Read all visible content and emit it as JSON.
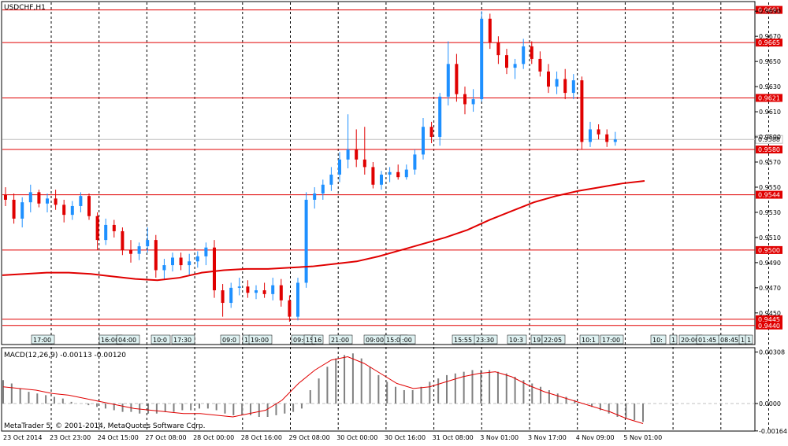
{
  "chart_data": [
    {
      "type": "candlestick",
      "title": "USDCHF,H1",
      "ylim": [
        0.9433,
        0.9697
      ],
      "yticks": [
        "0.9690",
        "0.9670",
        "0.9650",
        "0.9630",
        "0.9610",
        "0.9590",
        "0.9570",
        "0.9550",
        "0.9530",
        "0.9510",
        "0.9490",
        "0.9470",
        "0.9450"
      ],
      "levels": [
        "0.9691",
        "0.9665",
        "0.9621",
        "0.9580",
        "0.9544",
        "0.9500",
        "0.9445",
        "0.9440"
      ],
      "current_price": "0.9588",
      "ma_points": [
        0.948,
        0.9481,
        0.9482,
        0.9482,
        0.9481,
        0.9479,
        0.9477,
        0.9476,
        0.9478,
        0.9482,
        0.9484,
        0.9485,
        0.9485,
        0.9486,
        0.9487,
        0.9489,
        0.9491,
        0.9495,
        0.95,
        0.9505,
        0.951,
        0.9516,
        0.9524,
        0.9531,
        0.9538,
        0.9543,
        0.9547,
        0.955,
        0.9553,
        0.9555
      ],
      "candles": [
        {
          "o": 0.9544,
          "h": 0.955,
          "l": 0.9535,
          "c": 0.954
        },
        {
          "o": 0.954,
          "h": 0.9545,
          "l": 0.9521,
          "c": 0.9525
        },
        {
          "o": 0.9525,
          "h": 0.9542,
          "l": 0.9518,
          "c": 0.9538
        },
        {
          "o": 0.9538,
          "h": 0.9552,
          "l": 0.953,
          "c": 0.9546
        },
        {
          "o": 0.9546,
          "h": 0.9548,
          "l": 0.9534,
          "c": 0.9537
        },
        {
          "o": 0.9537,
          "h": 0.9545,
          "l": 0.953,
          "c": 0.9541
        },
        {
          "o": 0.9541,
          "h": 0.9548,
          "l": 0.9532,
          "c": 0.9536
        },
        {
          "o": 0.9536,
          "h": 0.954,
          "l": 0.9522,
          "c": 0.9528
        },
        {
          "o": 0.9528,
          "h": 0.9539,
          "l": 0.9524,
          "c": 0.9535
        },
        {
          "o": 0.9535,
          "h": 0.9546,
          "l": 0.953,
          "c": 0.9543
        },
        {
          "o": 0.9543,
          "h": 0.9545,
          "l": 0.9524,
          "c": 0.9527
        },
        {
          "o": 0.9527,
          "h": 0.953,
          "l": 0.95,
          "c": 0.9508
        },
        {
          "o": 0.9508,
          "h": 0.9525,
          "l": 0.9504,
          "c": 0.952
        },
        {
          "o": 0.952,
          "h": 0.9524,
          "l": 0.951,
          "c": 0.9515
        },
        {
          "o": 0.9515,
          "h": 0.9518,
          "l": 0.9496,
          "c": 0.95
        },
        {
          "o": 0.95,
          "h": 0.9508,
          "l": 0.949,
          "c": 0.9497
        },
        {
          "o": 0.9497,
          "h": 0.9506,
          "l": 0.9492,
          "c": 0.9503
        },
        {
          "o": 0.9503,
          "h": 0.9518,
          "l": 0.9498,
          "c": 0.9508
        },
        {
          "o": 0.9508,
          "h": 0.9512,
          "l": 0.9478,
          "c": 0.9484
        },
        {
          "o": 0.9484,
          "h": 0.9493,
          "l": 0.9477,
          "c": 0.9488
        },
        {
          "o": 0.9488,
          "h": 0.9498,
          "l": 0.9483,
          "c": 0.9494
        },
        {
          "o": 0.9494,
          "h": 0.9498,
          "l": 0.9484,
          "c": 0.9488
        },
        {
          "o": 0.9488,
          "h": 0.9497,
          "l": 0.948,
          "c": 0.9491
        },
        {
          "o": 0.9491,
          "h": 0.9499,
          "l": 0.9486,
          "c": 0.9495
        },
        {
          "o": 0.9495,
          "h": 0.9506,
          "l": 0.9488,
          "c": 0.9502
        },
        {
          "o": 0.9502,
          "h": 0.9508,
          "l": 0.9462,
          "c": 0.9468
        },
        {
          "o": 0.9468,
          "h": 0.9473,
          "l": 0.9447,
          "c": 0.9458
        },
        {
          "o": 0.9458,
          "h": 0.9474,
          "l": 0.9454,
          "c": 0.947
        },
        {
          "o": 0.947,
          "h": 0.9478,
          "l": 0.9464,
          "c": 0.9471
        },
        {
          "o": 0.9471,
          "h": 0.9476,
          "l": 0.9462,
          "c": 0.9466
        },
        {
          "o": 0.9466,
          "h": 0.9472,
          "l": 0.9461,
          "c": 0.9468
        },
        {
          "o": 0.9468,
          "h": 0.9474,
          "l": 0.9462,
          "c": 0.9465
        },
        {
          "o": 0.9465,
          "h": 0.9478,
          "l": 0.946,
          "c": 0.9472
        },
        {
          "o": 0.9472,
          "h": 0.9477,
          "l": 0.9455,
          "c": 0.946
        },
        {
          "o": 0.946,
          "h": 0.9464,
          "l": 0.9443,
          "c": 0.9447
        },
        {
          "o": 0.9447,
          "h": 0.9478,
          "l": 0.9444,
          "c": 0.9474
        },
        {
          "o": 0.9474,
          "h": 0.9546,
          "l": 0.947,
          "c": 0.954
        },
        {
          "o": 0.954,
          "h": 0.955,
          "l": 0.9533,
          "c": 0.9545
        },
        {
          "o": 0.9545,
          "h": 0.9556,
          "l": 0.954,
          "c": 0.9552
        },
        {
          "o": 0.9552,
          "h": 0.9566,
          "l": 0.9547,
          "c": 0.956
        },
        {
          "o": 0.956,
          "h": 0.9578,
          "l": 0.9554,
          "c": 0.9572
        },
        {
          "o": 0.9572,
          "h": 0.9608,
          "l": 0.9565,
          "c": 0.958
        },
        {
          "o": 0.958,
          "h": 0.9596,
          "l": 0.9566,
          "c": 0.9572
        },
        {
          "o": 0.9572,
          "h": 0.9598,
          "l": 0.956,
          "c": 0.9566
        },
        {
          "o": 0.9566,
          "h": 0.957,
          "l": 0.9549,
          "c": 0.9552
        },
        {
          "o": 0.9552,
          "h": 0.9563,
          "l": 0.9548,
          "c": 0.956
        },
        {
          "o": 0.956,
          "h": 0.9566,
          "l": 0.9554,
          "c": 0.9562
        },
        {
          "o": 0.9562,
          "h": 0.9568,
          "l": 0.9556,
          "c": 0.9558
        },
        {
          "o": 0.9558,
          "h": 0.9568,
          "l": 0.9556,
          "c": 0.9564
        },
        {
          "o": 0.9564,
          "h": 0.958,
          "l": 0.956,
          "c": 0.9576
        },
        {
          "o": 0.9576,
          "h": 0.9605,
          "l": 0.9572,
          "c": 0.9598
        },
        {
          "o": 0.9598,
          "h": 0.9602,
          "l": 0.9585,
          "c": 0.959
        },
        {
          "o": 0.959,
          "h": 0.9625,
          "l": 0.9583,
          "c": 0.9622
        },
        {
          "o": 0.9622,
          "h": 0.9666,
          "l": 0.9615,
          "c": 0.9648
        },
        {
          "o": 0.9648,
          "h": 0.9656,
          "l": 0.9618,
          "c": 0.9624
        },
        {
          "o": 0.9624,
          "h": 0.963,
          "l": 0.9608,
          "c": 0.9616
        },
        {
          "o": 0.9616,
          "h": 0.9628,
          "l": 0.961,
          "c": 0.962
        },
        {
          "o": 0.962,
          "h": 0.969,
          "l": 0.9618,
          "c": 0.9684
        },
        {
          "o": 0.9684,
          "h": 0.9688,
          "l": 0.966,
          "c": 0.9665
        },
        {
          "o": 0.9665,
          "h": 0.967,
          "l": 0.9648,
          "c": 0.9655
        },
        {
          "o": 0.9655,
          "h": 0.966,
          "l": 0.964,
          "c": 0.9645
        },
        {
          "o": 0.9645,
          "h": 0.9652,
          "l": 0.9636,
          "c": 0.9648
        },
        {
          "o": 0.9648,
          "h": 0.9668,
          "l": 0.9644,
          "c": 0.9662
        },
        {
          "o": 0.9662,
          "h": 0.9666,
          "l": 0.9648,
          "c": 0.9652
        },
        {
          "o": 0.9652,
          "h": 0.9658,
          "l": 0.9638,
          "c": 0.9642
        },
        {
          "o": 0.9642,
          "h": 0.9648,
          "l": 0.9625,
          "c": 0.963
        },
        {
          "o": 0.963,
          "h": 0.9642,
          "l": 0.9624,
          "c": 0.9636
        },
        {
          "o": 0.9636,
          "h": 0.9644,
          "l": 0.962,
          "c": 0.9625
        },
        {
          "o": 0.9625,
          "h": 0.964,
          "l": 0.962,
          "c": 0.9635
        },
        {
          "o": 0.9635,
          "h": 0.9638,
          "l": 0.958,
          "c": 0.9586
        },
        {
          "o": 0.9586,
          "h": 0.9602,
          "l": 0.9582,
          "c": 0.9596
        },
        {
          "o": 0.9596,
          "h": 0.96,
          "l": 0.9588,
          "c": 0.9592
        },
        {
          "o": 0.9592,
          "h": 0.9596,
          "l": 0.9582,
          "c": 0.9586
        },
        {
          "o": 0.9586,
          "h": 0.9594,
          "l": 0.9583,
          "c": 0.9588
        }
      ]
    },
    {
      "type": "histogram",
      "title": "MACD(12,26,9) -0.00113 -0.00120",
      "ylim": [
        -0.0016,
        0.0032
      ],
      "yticks": [
        "0.00308",
        "0.0000",
        "-0.00164"
      ],
      "values": [
        0.0014,
        0.0012,
        0.0009,
        0.0007,
        0.0006,
        0.0005,
        0.0004,
        0.0003,
        0.0001,
        0.0,
        -0.0001,
        -0.0002,
        -0.0003,
        -0.0004,
        -0.0005,
        -0.0005,
        -0.0006,
        -0.0006,
        -0.0006,
        -0.0005,
        -0.0005,
        -0.0004,
        -0.0004,
        -0.0003,
        -0.0003,
        -0.0004,
        -0.0006,
        -0.0007,
        -0.0007,
        -0.0007,
        -0.0008,
        -0.0008,
        -0.0007,
        -0.0006,
        -0.0005,
        -0.0003,
        0.0008,
        0.0015,
        0.0022,
        0.0027,
        0.0029,
        0.003,
        0.0027,
        0.0022,
        0.0017,
        0.0013,
        0.001,
        0.0008,
        0.0008,
        0.001,
        0.0013,
        0.0015,
        0.0017,
        0.0018,
        0.0019,
        0.002,
        0.002,
        0.002,
        0.0019,
        0.0018,
        0.0016,
        0.0014,
        0.0012,
        0.001,
        0.0008,
        0.0006,
        0.0004,
        0.0002,
        0.0,
        -0.0002,
        -0.0004,
        -0.0006,
        -0.0008,
        -0.0009,
        -0.001,
        -0.0011
      ],
      "signal": [
        0.001,
        0.0009,
        0.0008,
        0.0006,
        0.0005,
        0.0003,
        0.0001,
        -0.0001,
        -0.0003,
        -0.0004,
        -0.0005,
        -0.0006,
        -0.0006,
        -0.0007,
        -0.0008,
        -0.0006,
        -0.0004,
        0.0002,
        0.0012,
        0.002,
        0.0026,
        0.0028,
        0.0024,
        0.0018,
        0.0012,
        0.0009,
        0.001,
        0.0013,
        0.0016,
        0.0018,
        0.0019,
        0.0016,
        0.0011,
        0.0007,
        0.0004,
        0.0001,
        -0.0002,
        -0.0005,
        -0.0009,
        -0.0012
      ]
    }
  ],
  "x_axis_labels": [
    "23 Oct 2014",
    "23 Oct 23:00",
    "24 Oct 15:00",
    "27 Oct 08:00",
    "28 Oct 00:00",
    "28 Oct 16:00",
    "29 Oct 08:00",
    "30 Oct 00:00",
    "30 Oct 16:00",
    "31 Oct 08:00",
    "3 Nov 01:00",
    "3 Nov 17:00",
    "4 Nov 09:00",
    "5 Nov 01:00"
  ],
  "time_markers": [
    "17:00",
    "16:00",
    "04:00",
    "10:0",
    "17:30",
    "09:0",
    "1",
    "19:00",
    "09:0",
    "15",
    "16",
    "21:00",
    "09:00",
    "15:00",
    ":00",
    "15:55",
    "23:30",
    "10:3",
    "19",
    "22:05",
    "10:1",
    "17:00",
    "10:",
    "1",
    "20:00",
    "01:45",
    "08:45",
    "1",
    "1"
  ],
  "copyright": "MetaTrader 5, © 2001-2014, MetaQuotes Software Corp.",
  "colors": {
    "bull": "#1E90FF",
    "bear": "#E00000",
    "level": "#E00000",
    "ma": "#E00000",
    "grid": "#000000",
    "current": "#C0C0C0",
    "histogram": "#808080",
    "signal": "#E00000"
  }
}
